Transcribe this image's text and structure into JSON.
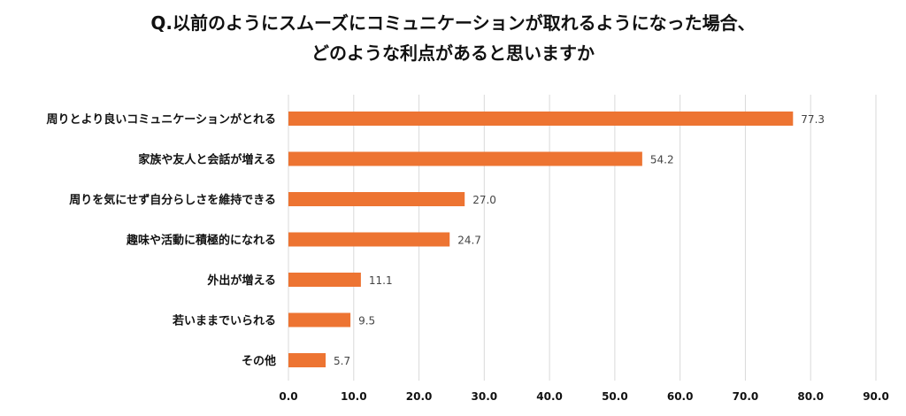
{
  "chart_data": {
    "type": "bar",
    "orientation": "horizontal",
    "title_lines": [
      "Q.以前のようにスムーズにコミュニケーションが取れるようになった場合、",
      "どのような利点があると思いますか"
    ],
    "categories": [
      "周りとより良いコミュニケーションがとれる",
      "家族や友人と会話が増える",
      "周りを気にせず自分らしさを維持できる",
      "趣味や活動に積極的になれる",
      "外出が増える",
      "若いままでいられる",
      "その他"
    ],
    "values": [
      77.3,
      54.2,
      27.0,
      24.7,
      11.1,
      9.5,
      5.7
    ],
    "value_labels": [
      "77.3",
      "54.2",
      "27.0",
      "24.7",
      "11.1",
      "9.5",
      "5.7"
    ],
    "xlim": [
      0,
      90
    ],
    "ticks": [
      "0.0",
      "10.0",
      "20.0",
      "30.0",
      "40.0",
      "50.0",
      "60.0",
      "70.0",
      "80.0",
      "90.0"
    ],
    "grid": "vertical",
    "bar_color": "#ED7432",
    "grid_color": "#D9D9D9"
  }
}
